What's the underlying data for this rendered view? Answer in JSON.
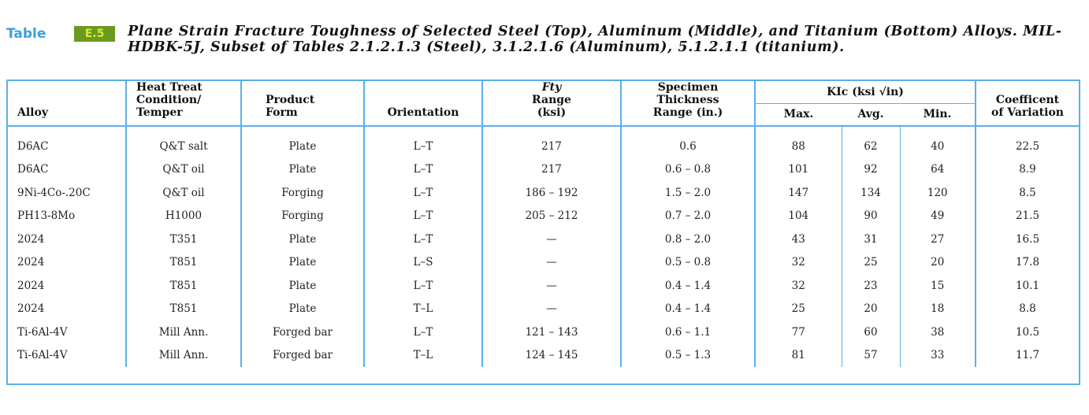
{
  "caption": {
    "table_word": "Table",
    "table_number": "E.5",
    "title": "Plane Strain Fracture Toughness of Selected Steel (Top), Aluminum (Middle), and Titanium (Bottom) Alloys. MIL-HDBK-5J, Subset of Tables 2.1.2.1.3 (Steel), 3.1.2.1.6 (Aluminum), 5.1.2.1.1 (titanium)."
  },
  "colors": {
    "border": "#5ab0e8",
    "table_word": "#3a9fe0",
    "number_bg": "#6a9a20"
  },
  "headers": {
    "alloy": "Alloy",
    "heat_treat": [
      "Heat Treat",
      "Condition/",
      "Temper"
    ],
    "product": [
      "Product",
      "Form"
    ],
    "orientation": "Orientation",
    "fty": [
      "Fty",
      "Range",
      "(ksi)"
    ],
    "thickness": [
      "Specimen",
      "Thickness",
      "Range (in.)"
    ],
    "kic": "KIc (ksi √in)",
    "kic_sub": [
      "Max.",
      "Avg.",
      "Min."
    ],
    "cov": [
      "Coefficent",
      "of Variation"
    ]
  },
  "rows": [
    [
      "D6AC",
      "Q&T salt",
      "Plate",
      "L–T",
      "217",
      "0.6",
      "88",
      "62",
      "40",
      "22.5"
    ],
    [
      "D6AC",
      "Q&T oil",
      "Plate",
      "L–T",
      "217",
      "0.6 – 0.8",
      "101",
      "92",
      "64",
      "8.9"
    ],
    [
      "9Ni-4Co-.20C",
      "Q&T oil",
      "Forging",
      "L–T",
      "186 – 192",
      "1.5 – 2.0",
      "147",
      "134",
      "120",
      "8.5"
    ],
    [
      "PH13-8Mo",
      "H1000",
      "Forging",
      "L–T",
      "205 – 212",
      "0.7 – 2.0",
      "104",
      "90",
      "49",
      "21.5"
    ],
    [
      "2024",
      "T351",
      "Plate",
      "L–T",
      "—",
      "0.8 – 2.0",
      "43",
      "31",
      "27",
      "16.5"
    ],
    [
      "2024",
      "T851",
      "Plate",
      "L–S",
      "—",
      "0.5 – 0.8",
      "32",
      "25",
      "20",
      "17.8"
    ],
    [
      "2024",
      "T851",
      "Plate",
      "L–T",
      "—",
      "0.4 – 1.4",
      "32",
      "23",
      "15",
      "10.1"
    ],
    [
      "2024",
      "T851",
      "Plate",
      "T–L",
      "—",
      "0.4 – 1.4",
      "25",
      "20",
      "18",
      "8.8"
    ],
    [
      "Ti-6Al-4V",
      "Mill Ann.",
      "Forged bar",
      "L–T",
      "121 – 143",
      "0.6 – 1.1",
      "77",
      "60",
      "38",
      "10.5"
    ],
    [
      "Ti-6Al-4V",
      "Mill Ann.",
      "Forged bar",
      "T–L",
      "124 – 145",
      "0.5 – 1.3",
      "81",
      "57",
      "33",
      "11.7"
    ]
  ]
}
